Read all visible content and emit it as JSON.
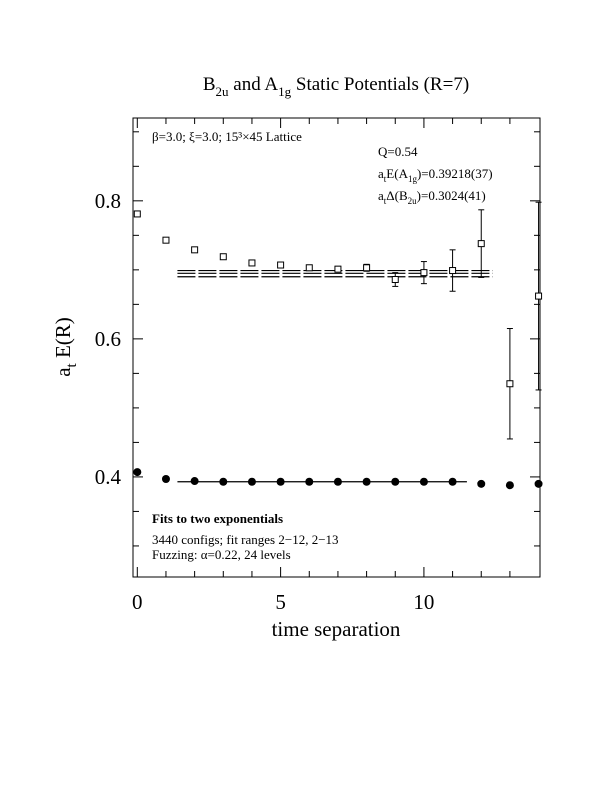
{
  "chart_data": {
    "type": "scatter",
    "title": [
      {
        "text": "B"
      },
      {
        "text": "2u",
        "sub": true
      },
      {
        "text": " and A"
      },
      {
        "text": "1g",
        "sub": true
      },
      {
        "text": " Static Potentials (R=7)"
      }
    ],
    "x_label": [
      {
        "text": "time separation"
      }
    ],
    "y_label": [
      {
        "text": "a"
      },
      {
        "text": "t",
        "sub": true
      },
      {
        "text": " E(R)"
      }
    ],
    "x": [
      0,
      1,
      2,
      3,
      4,
      5,
      6,
      7,
      8,
      9,
      10,
      11,
      12,
      13,
      14
    ],
    "series": [
      {
        "marker": "open-square",
        "color": "#000000",
        "values": [
          0.781,
          0.743,
          0.729,
          0.719,
          0.71,
          0.707,
          0.703,
          0.701,
          0.703,
          0.686,
          0.696,
          0.699,
          0.738,
          0.535,
          0.662
        ],
        "errors": [
          0.002,
          0.002,
          0.002,
          0.002,
          0.003,
          0.003,
          0.003,
          0.004,
          0.005,
          0.01,
          0.016,
          0.03,
          0.049,
          0.08,
          0.136
        ]
      },
      {
        "marker": "filled-circle",
        "color": "#000000",
        "values": [
          0.407,
          0.397,
          0.394,
          0.393,
          0.393,
          0.393,
          0.393,
          0.393,
          0.393,
          0.393,
          0.393,
          0.393,
          0.39,
          0.388,
          0.39
        ]
      }
    ],
    "fits": [
      {
        "xrange": [
          1.4,
          12.4
        ],
        "values": [
          0.69,
          0.695,
          0.699
        ]
      },
      {
        "xrange": [
          1.4,
          11.5
        ],
        "values": [
          0.393
        ]
      }
    ],
    "annotations": [
      [
        {
          "text": "β=3.0; ξ=3.0; 15³×45 Lattice"
        }
      ],
      [
        {
          "text": "Q=0.54"
        }
      ],
      [
        {
          "text": "a"
        },
        {
          "text": "t",
          "sub": true
        },
        {
          "text": "E(A"
        },
        {
          "text": "1g",
          "sub": true
        },
        {
          "text": ")=0.39218(37)"
        }
      ],
      [
        {
          "text": "a"
        },
        {
          "text": "t",
          "sub": true
        },
        {
          "text": "Δ(B"
        },
        {
          "text": "2u",
          "sub": true
        },
        {
          "text": ")=0.3024(41)"
        }
      ],
      [
        {
          "text": "Fits to two exponentials",
          "bold": true
        }
      ],
      [
        {
          "text": "3440 configs; fit ranges 2−12, 2−13"
        }
      ],
      [
        {
          "text": "Fuzzing: α=0.22, 24 levels"
        }
      ]
    ],
    "xlim": [
      -0.15,
      14.05
    ],
    "ylim": [
      0.255,
      0.92
    ],
    "xticks": [
      0,
      5,
      10
    ],
    "xminorticks": [
      1,
      2,
      3,
      4,
      6,
      7,
      8,
      9,
      11,
      12,
      13
    ],
    "yticks": [
      0.4,
      0.6,
      0.8
    ],
    "yminorticks": [
      0.3,
      0.35,
      0.45,
      0.5,
      0.55,
      0.65,
      0.7,
      0.75,
      0.85,
      0.9
    ]
  }
}
